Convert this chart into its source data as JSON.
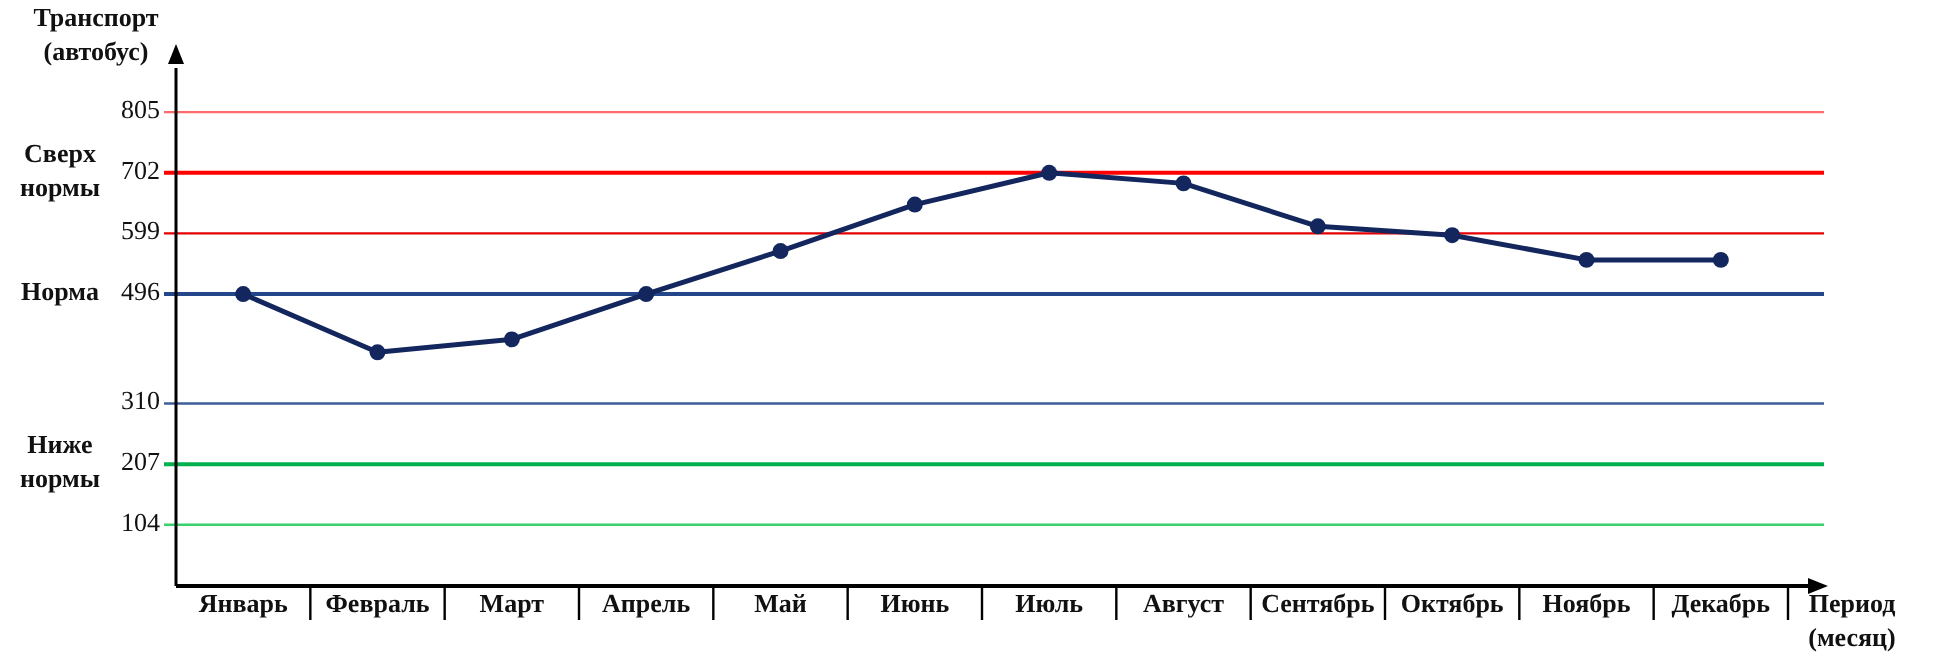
{
  "chart_data": {
    "type": "line",
    "ylabel": "Транспорт\n(автобус)",
    "xlabel": "Период\n(месяц)",
    "categories": [
      "Январь",
      "Февраль",
      "Март",
      "Апрель",
      "Май",
      "Июнь",
      "Июль",
      "Август",
      "Сентябрь",
      "Октябрь",
      "Ноябрь",
      "Декабрь"
    ],
    "series": [
      {
        "color": "#13275e",
        "values": [
          496,
          397,
          419,
          496,
          569,
          648,
          702,
          684,
          611,
          596,
          554,
          554
        ]
      }
    ],
    "ylim": [
      0,
      880
    ],
    "yticks": [
      104,
      207,
      310,
      496,
      599,
      702,
      805
    ],
    "marker": "circle",
    "line_style": "solid",
    "ref_lines": [
      {
        "axis": "y",
        "value": 805,
        "color": "#ff6b6b"
      },
      {
        "axis": "y",
        "value": 702,
        "label": "Сверх\nнормы",
        "color": "#ff0000"
      },
      {
        "axis": "y",
        "value": 599,
        "color": "#e60000"
      },
      {
        "axis": "y",
        "value": 496,
        "label": "Норма",
        "color": "#24468a"
      },
      {
        "axis": "y",
        "value": 310,
        "color": "#3d5c99"
      },
      {
        "axis": "y",
        "value": 207,
        "label": "Ниже\nнормы",
        "color": "#00b04f"
      },
      {
        "axis": "y",
        "value": 104,
        "color": "#3ccf6e"
      }
    ]
  }
}
